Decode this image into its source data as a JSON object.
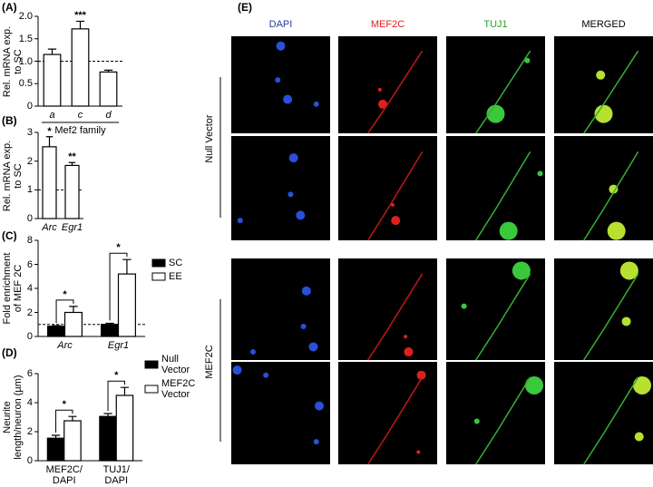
{
  "chart_data": [
    {
      "type": "bar",
      "panel_label": "(A)",
      "y_label": "Rel. mRNA exp. to SC",
      "x_label": "Mef2 family",
      "categories": [
        "a",
        "c",
        "d"
      ],
      "series": [
        {
          "color": "#ffffff",
          "values": [
            1.15,
            1.72,
            0.76
          ],
          "errors": [
            0.12,
            0.17,
            0.04
          ]
        }
      ],
      "significance": [
        null,
        "***",
        null
      ],
      "reference_line": 1,
      "ylim": [
        0,
        2
      ],
      "yticks": [
        0,
        0.5,
        {
          "value": 1,
          "label": "1.0"
        },
        1.5,
        {
          "value": 2,
          "label": "2.0"
        }
      ]
    },
    {
      "type": "bar",
      "panel_label": "(B)",
      "y_label": "Rel. mRNA exp. to SC",
      "categories": [
        "Arc",
        "Egr1"
      ],
      "series": [
        {
          "color": "#ffffff",
          "values": [
            2.5,
            1.85
          ],
          "errors": [
            0.35,
            0.1
          ]
        }
      ],
      "significance": [
        "*",
        "**"
      ],
      "reference_line": 1,
      "ylim": [
        0,
        3
      ],
      "yticks": [
        0,
        1,
        2,
        3
      ]
    },
    {
      "type": "bar",
      "panel_label": "(C)",
      "y_label": "Fold enrichment of MEF 2C",
      "categories": [
        "Arc",
        "Egr1"
      ],
      "series": [
        {
          "name": "SC",
          "color": "#000000",
          "values": [
            0.85,
            1.0
          ],
          "errors": [
            0.05,
            0.1
          ]
        },
        {
          "name": "EE",
          "color": "#ffffff",
          "values": [
            2.0,
            5.2
          ],
          "errors": [
            0.5,
            1.2
          ]
        }
      ],
      "significance": [
        "*",
        "*"
      ],
      "reference_line": 1,
      "ylim": [
        0,
        8
      ],
      "yticks": [
        0,
        2,
        4,
        6,
        8
      ]
    },
    {
      "type": "bar",
      "panel_label": "(D)",
      "y_label": "Neurite length/neuron (µm)",
      "categories": [
        "MEF2C/ DAPI",
        "TUJ1/ DAPI"
      ],
      "series": [
        {
          "name": "Null Vector",
          "color": "#000000",
          "values": [
            1.55,
            3.05
          ],
          "errors": [
            0.2,
            0.2
          ]
        },
        {
          "name": "MEF2C Vector",
          "color": "#ffffff",
          "values": [
            2.75,
            4.5
          ],
          "errors": [
            0.3,
            0.55
          ]
        }
      ],
      "significance": [
        "*",
        "*"
      ],
      "ylim": [
        0,
        6
      ],
      "yticks": [
        0,
        2,
        4,
        6
      ]
    }
  ],
  "panel_e": {
    "panel_label": "(E)",
    "columns": [
      {
        "label": "DAPI",
        "color": "#2a3d9c"
      },
      {
        "label": "MEF2C",
        "color": "#e02020"
      },
      {
        "label": "TUJ1",
        "color": "#2aa02a"
      },
      {
        "label": "MERGED",
        "color": "#000000"
      }
    ],
    "groups": [
      "Null Vector",
      "MEF2C"
    ]
  }
}
